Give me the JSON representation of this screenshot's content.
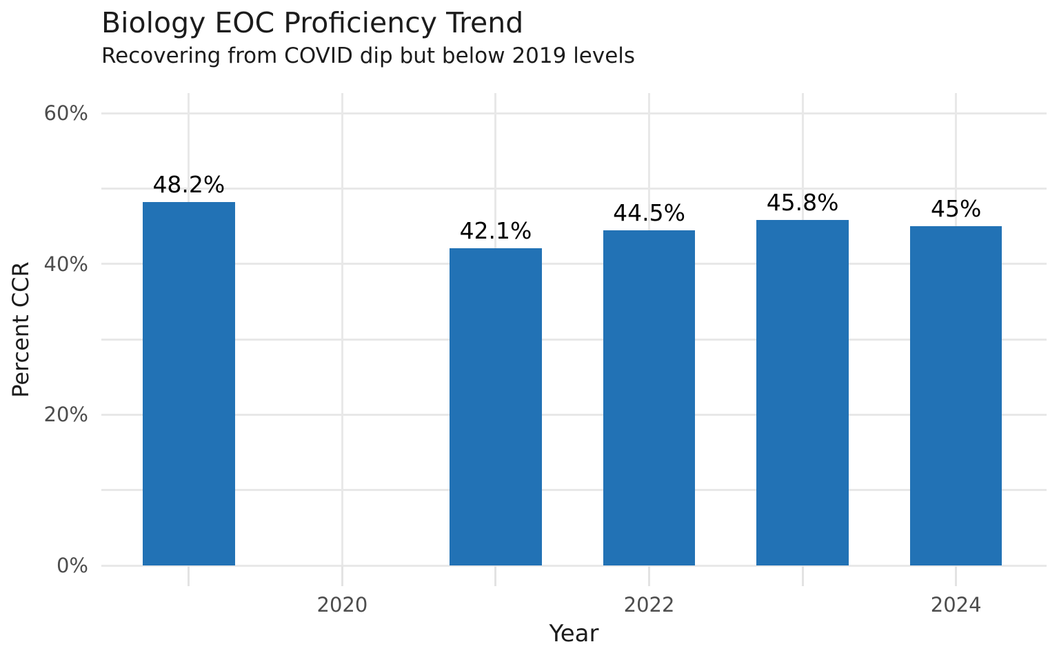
{
  "chart_data": {
    "type": "bar",
    "title": "Biology EOC Proficiency Trend",
    "subtitle": "Recovering from COVID dip but below 2019 levels",
    "xlabel": "Year",
    "ylabel": "Percent CCR",
    "x": [
      2019,
      2021,
      2022,
      2023,
      2024
    ],
    "values": [
      48.2,
      42.1,
      44.5,
      45.8,
      45
    ],
    "bar_labels": [
      "48.2%",
      "42.1%",
      "44.5%",
      "45.8%",
      "45%"
    ],
    "note": "no bar for 2020 (COVID year)",
    "bar_width_years": 0.6,
    "xlim": [
      2018.43,
      2024.59
    ],
    "ylim": [
      0,
      62.66
    ],
    "x_ticks": [
      2019,
      2020,
      2021,
      2022,
      2023,
      2024
    ],
    "x_tick_labels": [
      "",
      "2020",
      "",
      "2022",
      "",
      "2024"
    ],
    "y_ticks": [
      0,
      10,
      20,
      30,
      40,
      50,
      60
    ],
    "y_tick_labels": [
      "0%",
      "",
      "20%",
      "",
      "40%",
      "",
      "60%"
    ],
    "grid": true,
    "legend": "none",
    "colors": {
      "bar": "#2272b5",
      "grid": "#e8e8e8",
      "tick_mark": "#e3e3e3",
      "tick_label": "#4d4d4d",
      "text": "#1c1c1c",
      "value_label": "#000000",
      "background": "#ffffff"
    }
  }
}
